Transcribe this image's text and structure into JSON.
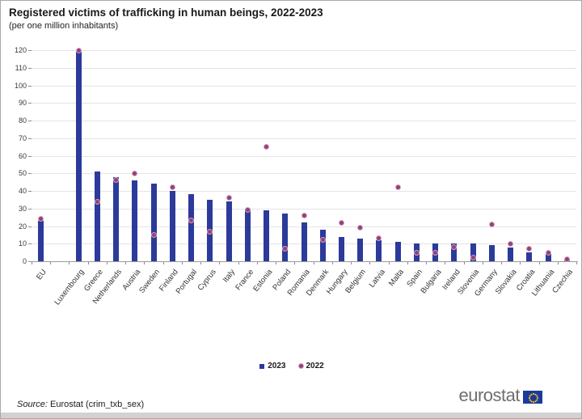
{
  "title": "Registered victims of trafficking in human beings, 2022-2023",
  "subtitle": "(per one million inhabitants)",
  "legend": {
    "series_2023_label": "2023",
    "series_2022_label": "2022"
  },
  "footer": {
    "source_label": "Source:",
    "source_text": "Eurostat (crim_txb_sex)",
    "logo_text": "eurostat"
  },
  "colors": {
    "bar_2023": "#2b3a9b",
    "dot_2022": "#8f4475",
    "dot_halo": "#d79ec0",
    "flag_blue": "#1a3a9e"
  },
  "chart_data": {
    "type": "bar",
    "title": "Registered victims of trafficking in human beings, 2022-2023",
    "subtitle": "(per one million inhabitants)",
    "xlabel": "",
    "ylabel": "per one million inhabitants",
    "ylim": [
      0,
      120
    ],
    "ytick_step": 10,
    "grid": true,
    "legend_position": "bottom",
    "gap_after_first_category": true,
    "categories": [
      "EU",
      "Luxembourg",
      "Greece",
      "Netherlands",
      "Austria",
      "Sweden",
      "Finland",
      "Portugal",
      "Cyprus",
      "Italy",
      "France",
      "Estonia",
      "Poland",
      "Romania",
      "Denmark",
      "Hungary",
      "Belgium",
      "Latvia",
      "Malta",
      "Spain",
      "Bulgaria",
      "Ireland",
      "Slovenia",
      "Germany",
      "Slovakia",
      "Croatia",
      "Lithuania",
      "Czechia"
    ],
    "series": [
      {
        "name": "2023",
        "type": "bar",
        "values": [
          23,
          119,
          51,
          48,
          46,
          44,
          40,
          38,
          35,
          34,
          30,
          29,
          27,
          22,
          18,
          14,
          13,
          12,
          11,
          10,
          10,
          10,
          10,
          9,
          8,
          5,
          4,
          1
        ]
      },
      {
        "name": "2022",
        "type": "scatter",
        "values": [
          24,
          120,
          34,
          46,
          50,
          15,
          42,
          23,
          17,
          36,
          29,
          65,
          7,
          26,
          12,
          22,
          19,
          13,
          42,
          5,
          5,
          8,
          2,
          21,
          10,
          7,
          5,
          1
        ]
      }
    ]
  }
}
